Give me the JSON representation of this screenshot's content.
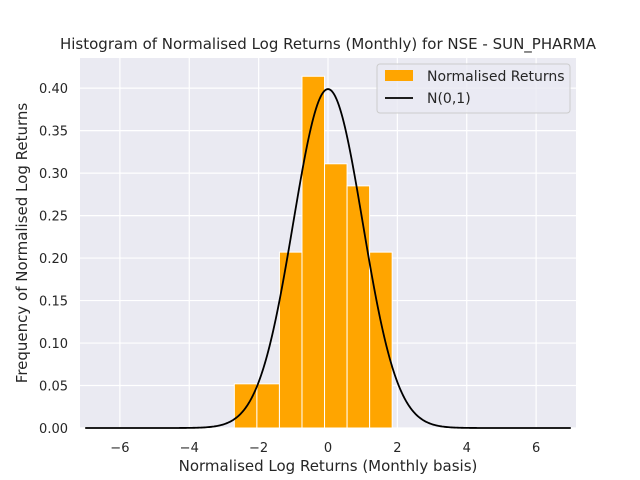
{
  "chart_data": {
    "type": "bar",
    "title": "Histogram of Normalised Log Returns (Monthly) for NSE - SUN_PHARMA",
    "xlabel": "Normalised Log Returns (Monthly basis)",
    "ylabel": "Frequency of Normalised Log Returns",
    "xlim": [
      -7.15,
      7.15
    ],
    "ylim": [
      0,
      0.4355
    ],
    "xticks": [
      -6,
      -4,
      -2,
      0,
      2,
      4,
      6
    ],
    "xtick_labels": [
      "−6",
      "−4",
      "−2",
      "0",
      "2",
      "4",
      "6"
    ],
    "yticks": [
      0.0,
      0.05,
      0.1,
      0.15,
      0.2,
      0.25,
      0.3,
      0.35,
      0.4
    ],
    "ytick_labels": [
      "0.00",
      "0.05",
      "0.10",
      "0.15",
      "0.20",
      "0.25",
      "0.30",
      "0.35",
      "0.40"
    ],
    "grid": true,
    "legend_position": "top-right",
    "bins": [
      {
        "x0": -2.7,
        "x1": -2.05,
        "value": 0.052
      },
      {
        "x0": -2.05,
        "x1": -1.4,
        "value": 0.052
      },
      {
        "x0": -1.4,
        "x1": -0.75,
        "value": 0.207
      },
      {
        "x0": -0.75,
        "x1": -0.1,
        "value": 0.414
      },
      {
        "x0": -0.1,
        "x1": 0.55,
        "value": 0.311
      },
      {
        "x0": 0.55,
        "x1": 1.2,
        "value": 0.285
      },
      {
        "x0": 1.2,
        "x1": 1.85,
        "value": 0.207
      }
    ],
    "series": [
      {
        "name": "Normalised Returns",
        "kind": "histogram",
        "color": "#ffa500"
      },
      {
        "name": "N(0,1)",
        "kind": "line",
        "color": "#000000",
        "x_range": [
          -7,
          7
        ],
        "function": "normal_pdf"
      }
    ],
    "colors": {
      "background": "#eaeaf2",
      "grid": "#ffffff",
      "bar": "#ffa500",
      "bar_edge": "#ffffff",
      "line": "#000000"
    }
  }
}
